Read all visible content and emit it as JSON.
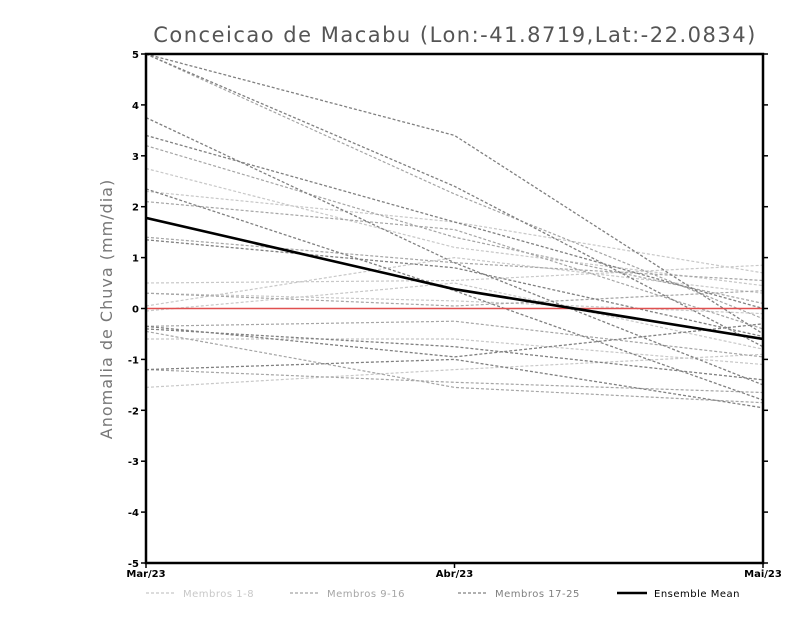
{
  "chart_data": {
    "type": "line",
    "title": "Conceicao de Macabu (Lon:-41.8719,Lat:-22.0834)",
    "xlabel": "",
    "ylabel": "Anomalia de Chuva (mm/dia)",
    "categories": [
      "Mar/23",
      "Abr/23",
      "Mai/23"
    ],
    "ylim": [
      -5,
      5
    ],
    "yticks": [
      -5,
      -4,
      -3,
      -2,
      -1,
      0,
      1,
      2,
      3,
      4,
      5
    ],
    "grid": false,
    "legend_position": "bottom",
    "reference_line": {
      "y": 0,
      "color": "#e05050"
    },
    "colors": {
      "group1": "#c8c8c8",
      "group2": "#a5a5a5",
      "group3": "#808080",
      "mean": "#000000",
      "reference": "#e05050"
    },
    "legend": [
      {
        "label": "Membros 1-8",
        "group": "group1"
      },
      {
        "label": "Membros 9-16",
        "group": "group2"
      },
      {
        "label": "Membros 17-25",
        "group": "group3"
      },
      {
        "label": "Ensemble Mean",
        "group": "mean"
      }
    ],
    "series": [
      {
        "group": "group1",
        "values": [
          2.75,
          1.2,
          0.45
        ]
      },
      {
        "group": "group1",
        "values": [
          2.3,
          1.7,
          0.7
        ]
      },
      {
        "group": "group1",
        "values": [
          0.5,
          0.55,
          0.85
        ]
      },
      {
        "group": "group1",
        "values": [
          0.3,
          0.15,
          -0.1
        ]
      },
      {
        "group": "group1",
        "values": [
          -0.05,
          0.5,
          -0.8
        ]
      },
      {
        "group": "group1",
        "values": [
          -0.6,
          -0.6,
          -1.1
        ]
      },
      {
        "group": "group1",
        "values": [
          -1.55,
          -1.2,
          -0.9
        ]
      },
      {
        "group": "group1",
        "values": [
          0.05,
          1.0,
          0.3
        ]
      },
      {
        "group": "group2",
        "values": [
          5.0,
          2.25,
          -0.2
        ]
      },
      {
        "group": "group2",
        "values": [
          3.2,
          1.4,
          0.1
        ]
      },
      {
        "group": "group2",
        "values": [
          2.1,
          1.55,
          -0.4
        ]
      },
      {
        "group": "group2",
        "values": [
          1.4,
          0.9,
          0.55
        ]
      },
      {
        "group": "group2",
        "values": [
          0.3,
          0.05,
          0.35
        ]
      },
      {
        "group": "group2",
        "values": [
          -0.35,
          -0.25,
          -0.95
        ]
      },
      {
        "group": "group2",
        "values": [
          -1.2,
          -1.45,
          -1.65
        ]
      },
      {
        "group": "group2",
        "values": [
          -0.45,
          -1.55,
          -1.85
        ]
      },
      {
        "group": "group3",
        "values": [
          5.0,
          3.4,
          -0.5
        ]
      },
      {
        "group": "group3",
        "values": [
          5.0,
          2.4,
          -0.75
        ]
      },
      {
        "group": "group3",
        "values": [
          3.75,
          0.9,
          -1.5
        ]
      },
      {
        "group": "group3",
        "values": [
          3.4,
          1.7,
          0.0
        ]
      },
      {
        "group": "group3",
        "values": [
          2.35,
          0.35,
          -1.8
        ]
      },
      {
        "group": "group3",
        "values": [
          1.35,
          0.8,
          -0.55
        ]
      },
      {
        "group": "group3",
        "values": [
          -0.35,
          -0.95,
          -0.3
        ]
      },
      {
        "group": "group3",
        "values": [
          -0.4,
          -0.75,
          -1.4
        ]
      },
      {
        "group": "group3",
        "values": [
          -1.2,
          -1.0,
          -1.95
        ]
      },
      {
        "group": "mean",
        "values": [
          1.78,
          0.38,
          -0.6
        ]
      }
    ]
  }
}
